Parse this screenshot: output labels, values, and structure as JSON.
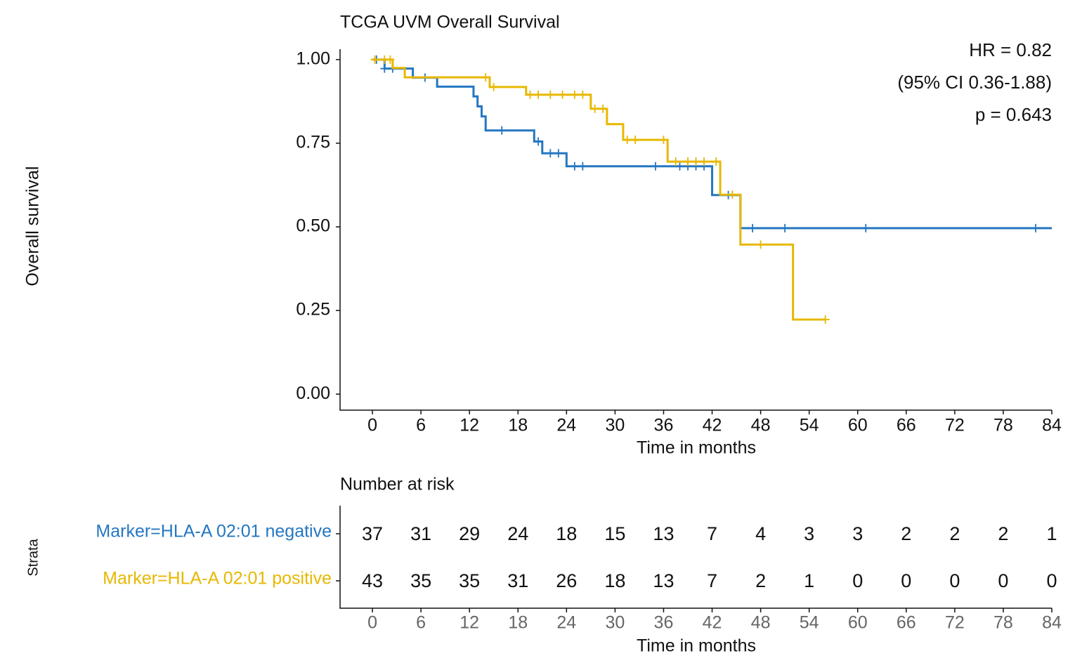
{
  "chart_data": [
    {
      "type": "step",
      "title": "TCGA UVM Overall Survival",
      "xlabel": "Time in months",
      "ylabel": "Overall survival",
      "xlim": [
        -4,
        84
      ],
      "ylim": [
        -0.05,
        1.05
      ],
      "xticks": [
        0,
        6,
        12,
        18,
        24,
        30,
        36,
        42,
        48,
        54,
        60,
        66,
        72,
        78,
        84
      ],
      "yticks": [
        {
          "value": 0,
          "label": "0.00"
        },
        {
          "value": 0.25,
          "label": "0.25"
        },
        {
          "value": 0.5,
          "label": "0.50"
        },
        {
          "value": 0.75,
          "label": "0.75"
        },
        {
          "value": 1,
          "label": "1.00"
        }
      ],
      "annotations": [
        "HR = 0.82",
        "(95% CI 0.36-1.88)",
        "p = 0.643"
      ],
      "series": [
        {
          "color": "#2477c1",
          "x": [
            0,
            1.5,
            5,
            8,
            12.5,
            13,
            13.5,
            14,
            20,
            21,
            24,
            42,
            45.5,
            84
          ],
          "values": [
            1,
            0.973,
            0.946,
            0.919,
            0.89,
            0.86,
            0.83,
            0.788,
            0.755,
            0.72,
            0.681,
            0.595,
            0.496,
            0.496
          ],
          "censor_x": [
            0.5,
            1.5,
            2.5,
            6.5,
            16,
            20.5,
            22,
            23,
            25,
            26,
            35,
            38,
            39,
            40,
            41,
            44,
            47,
            51,
            61,
            82
          ],
          "censor_values": [
            1,
            0.973,
            0.973,
            0.946,
            0.788,
            0.755,
            0.72,
            0.72,
            0.681,
            0.681,
            0.681,
            0.681,
            0.681,
            0.681,
            0.681,
            0.595,
            0.496,
            0.496,
            0.496,
            0.496
          ]
        },
        {
          "color": "#e7b800",
          "x": [
            0,
            2.5,
            4,
            14.5,
            19,
            27,
            29,
            31,
            36.5,
            43,
            45.5,
            52,
            56
          ],
          "values": [
            1,
            0.975,
            0.947,
            0.918,
            0.895,
            0.853,
            0.807,
            0.76,
            0.695,
            0.596,
            0.447,
            0.223,
            0.223
          ],
          "censor_x": [
            0.3,
            1.5,
            2.2,
            14,
            15,
            19.5,
            20.5,
            22,
            23.5,
            25,
            26,
            27.5,
            28.5,
            31.5,
            32.5,
            36,
            37.5,
            39,
            40,
            41,
            42.5,
            44.5,
            48,
            56
          ],
          "censor_values": [
            1,
            1,
            1,
            0.947,
            0.918,
            0.895,
            0.895,
            0.895,
            0.895,
            0.895,
            0.895,
            0.853,
            0.853,
            0.76,
            0.76,
            0.76,
            0.695,
            0.695,
            0.695,
            0.695,
            0.695,
            0.596,
            0.447,
            0.223
          ]
        }
      ]
    },
    {
      "type": "table",
      "title": "Number at risk",
      "xlabel": "Time in months",
      "ylabel": "Strata",
      "xlim": [
        -4,
        84
      ],
      "xticks": [
        0,
        6,
        12,
        18,
        24,
        30,
        36,
        42,
        48,
        54,
        60,
        66,
        72,
        78,
        84
      ],
      "series": [
        {
          "name": "Marker=HLA-A 02:01 negative",
          "color": "#2477c1",
          "values": [
            37,
            31,
            29,
            24,
            18,
            15,
            13,
            7,
            4,
            3,
            3,
            2,
            2,
            2,
            1
          ]
        },
        {
          "name": "Marker=HLA-A 02:01 positive",
          "color": "#e7b800",
          "values": [
            43,
            35,
            35,
            31,
            26,
            18,
            13,
            7,
            2,
            1,
            0,
            0,
            0,
            0,
            0
          ]
        }
      ]
    }
  ]
}
